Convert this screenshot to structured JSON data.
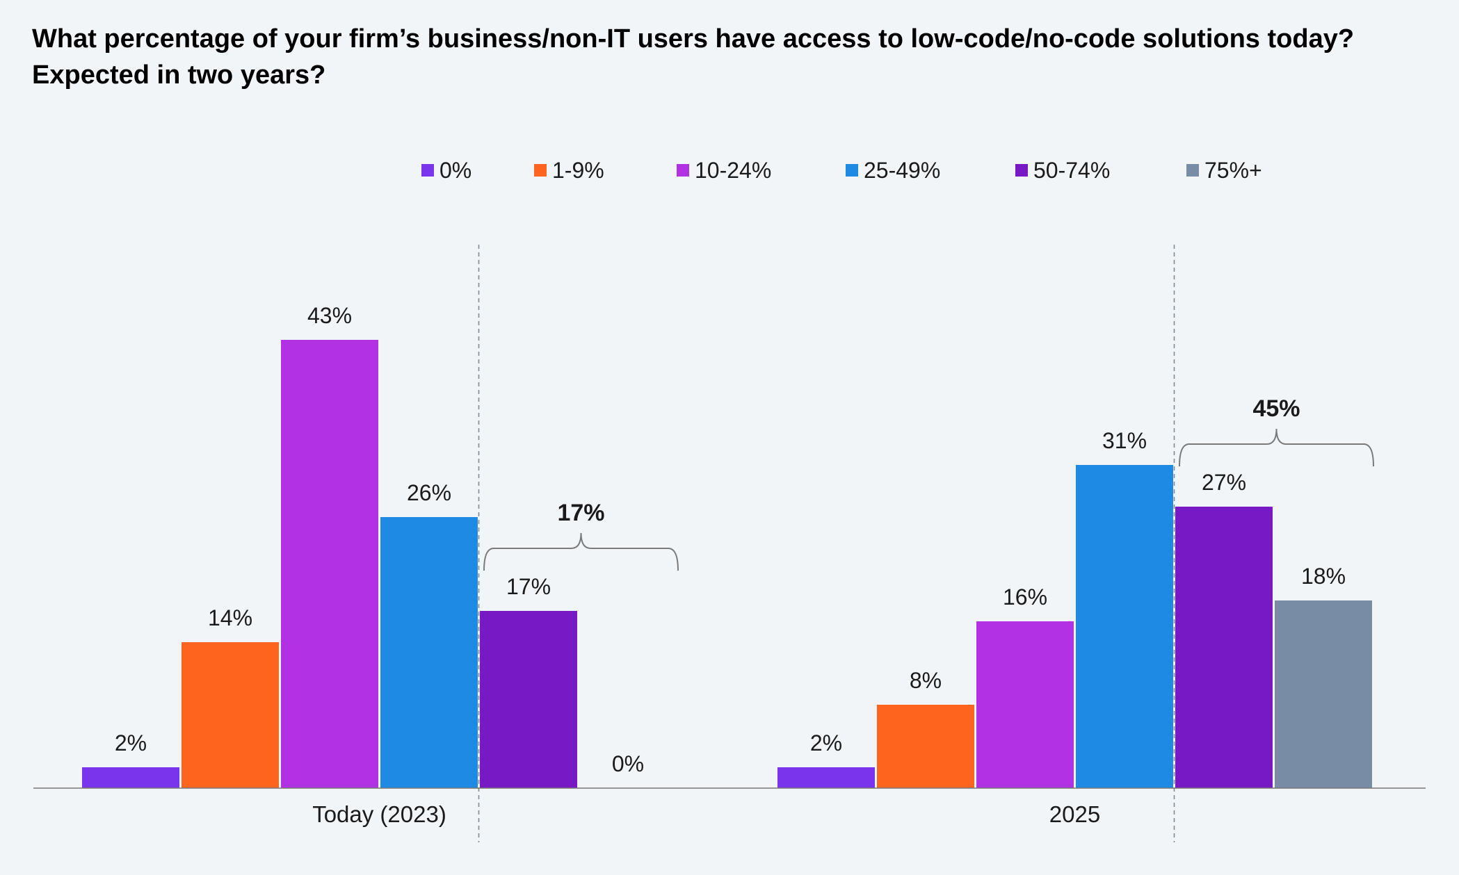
{
  "chart_data": {
    "type": "bar",
    "title": "What percentage of your firm’s business/non-IT users have access to low-code/no-code solutions today? Expected in two years?",
    "xlabel": "",
    "ylabel": "",
    "ylim": [
      0,
      50
    ],
    "grid": false,
    "legend_position": "top",
    "categories": [
      "Today (2023)",
      "2025"
    ],
    "series": [
      {
        "name": "0%",
        "color": "#7a35ec",
        "values": [
          2,
          2
        ],
        "labels": [
          "2%",
          "2%"
        ]
      },
      {
        "name": "1-9%",
        "color": "#ff641e",
        "values": [
          14,
          8
        ],
        "labels": [
          "14%",
          "8%"
        ]
      },
      {
        "name": "10-24%",
        "color": "#b132e3",
        "values": [
          43,
          16
        ],
        "labels": [
          "43%",
          "16%"
        ]
      },
      {
        "name": "25-49%",
        "color": "#1e8ae4",
        "values": [
          26,
          31
        ],
        "labels": [
          "26%",
          "31%"
        ]
      },
      {
        "name": "50-74%",
        "color": "#7719c4",
        "values": [
          17,
          27
        ],
        "labels": [
          "17%",
          "27%"
        ]
      },
      {
        "name": "75%+",
        "color": "#788ca6",
        "values": [
          0,
          18
        ],
        "labels": [
          "0%",
          "18%"
        ]
      }
    ],
    "annotations": [
      {
        "category": 0,
        "from_series": 4,
        "to_series": 5,
        "label": "17%"
      },
      {
        "category": 1,
        "from_series": 4,
        "to_series": 5,
        "label": "45%"
      }
    ]
  }
}
